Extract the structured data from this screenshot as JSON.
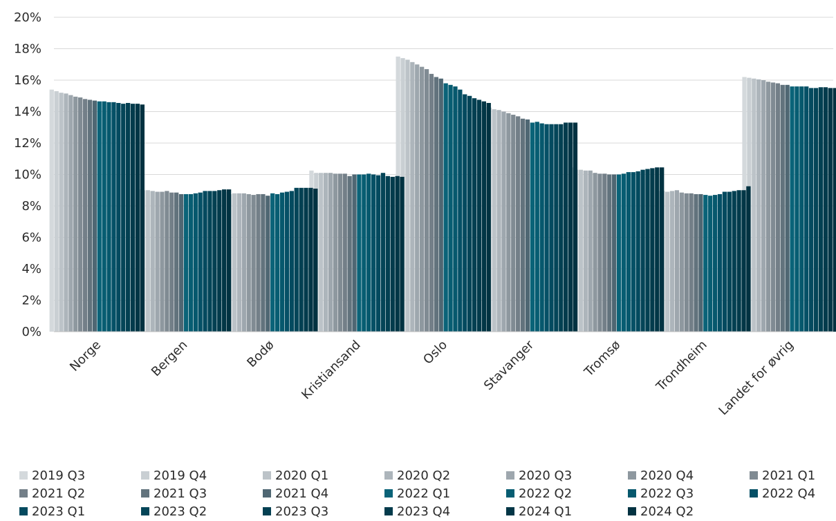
{
  "chart_data": {
    "type": "bar",
    "title": "",
    "xlabel": "",
    "ylabel": "",
    "ylim": [
      0,
      20
    ],
    "yticks": [
      "0%",
      "2%",
      "4%",
      "6%",
      "8%",
      "10%",
      "12%",
      "14%",
      "16%",
      "18%",
      "20%"
    ],
    "grid": true,
    "legend_position": "bottom",
    "categories": [
      "Norge",
      "Bergen",
      "Bodø",
      "Kristiansand",
      "Oslo",
      "Stavanger",
      "Tromsø",
      "Trondheim",
      "Landet for øvrig"
    ],
    "series": [
      {
        "name": "2019 Q3",
        "color": "#d4d9dc",
        "values": [
          15.4,
          9.05,
          8.9,
          10.25,
          17.5,
          14.3,
          10.45,
          8.95,
          16.2
        ]
      },
      {
        "name": "2019 Q4",
        "color": "#c9cfd3",
        "values": [
          15.3,
          9.0,
          8.75,
          10.1,
          17.4,
          14.25,
          10.3,
          8.95,
          16.15
        ]
      },
      {
        "name": "2020 Q1",
        "color": "#bcc3c8",
        "values": [
          15.2,
          9.0,
          8.8,
          10.1,
          17.3,
          14.15,
          10.3,
          8.9,
          16.1
        ]
      },
      {
        "name": "2020 Q2",
        "color": "#adb5bb",
        "values": [
          15.15,
          8.95,
          8.8,
          10.1,
          17.15,
          14.1,
          10.25,
          8.95,
          16.05
        ]
      },
      {
        "name": "2020 Q3",
        "color": "#9ea7ae",
        "values": [
          15.05,
          8.9,
          8.8,
          10.1,
          17.0,
          14.0,
          10.25,
          9.0,
          16.0
        ]
      },
      {
        "name": "2020 Q4",
        "color": "#8e989f",
        "values": [
          14.95,
          8.9,
          8.75,
          10.05,
          16.85,
          13.9,
          10.1,
          8.85,
          15.9
        ]
      },
      {
        "name": "2021 Q1",
        "color": "#808b93",
        "values": [
          14.9,
          8.95,
          8.7,
          10.05,
          16.7,
          13.8,
          10.05,
          8.8,
          15.85
        ]
      },
      {
        "name": "2021 Q2",
        "color": "#737f88",
        "values": [
          14.8,
          8.85,
          8.75,
          10.05,
          16.4,
          13.7,
          10.05,
          8.8,
          15.8
        ]
      },
      {
        "name": "2021 Q3",
        "color": "#62737d",
        "values": [
          14.75,
          8.85,
          8.75,
          9.9,
          16.2,
          13.55,
          10.0,
          8.75,
          15.7
        ]
      },
      {
        "name": "2021 Q4",
        "color": "#4f6773",
        "values": [
          14.7,
          8.75,
          8.65,
          10.0,
          16.1,
          13.5,
          10.0,
          8.75,
          15.7
        ]
      },
      {
        "name": "2022 Q1",
        "color": "#0a6378",
        "values": [
          14.65,
          8.75,
          8.8,
          10.0,
          15.8,
          13.3,
          10.0,
          8.7,
          15.6
        ]
      },
      {
        "name": "2022 Q2",
        "color": "#075d72",
        "values": [
          14.65,
          8.75,
          8.75,
          10.0,
          15.7,
          13.35,
          10.05,
          8.65,
          15.6
        ]
      },
      {
        "name": "2022 Q3",
        "color": "#06586d",
        "values": [
          14.6,
          8.8,
          8.85,
          10.05,
          15.6,
          13.25,
          10.15,
          8.7,
          15.6
        ]
      },
      {
        "name": "2022 Q4",
        "color": "#055066",
        "values": [
          14.6,
          8.85,
          8.9,
          10.0,
          15.4,
          13.2,
          10.15,
          8.75,
          15.6
        ]
      },
      {
        "name": "2023 Q1",
        "color": "#044a5f",
        "values": [
          14.55,
          8.95,
          8.95,
          9.95,
          15.1,
          13.2,
          10.2,
          8.9,
          15.5
        ]
      },
      {
        "name": "2023 Q2",
        "color": "#044558",
        "values": [
          14.5,
          8.95,
          9.15,
          10.1,
          15.0,
          13.2,
          10.3,
          8.9,
          15.5
        ]
      },
      {
        "name": "2023 Q3",
        "color": "#034052",
        "values": [
          14.55,
          8.95,
          9.15,
          9.9,
          14.85,
          13.2,
          10.35,
          8.95,
          15.55
        ]
      },
      {
        "name": "2023 Q4",
        "color": "#033b4c",
        "values": [
          14.5,
          9.0,
          9.15,
          9.85,
          14.75,
          13.3,
          10.4,
          9.0,
          15.55
        ]
      },
      {
        "name": "2024 Q1",
        "color": "#023646",
        "values": [
          14.5,
          9.05,
          9.15,
          9.9,
          14.65,
          13.3,
          10.45,
          9.0,
          15.5
        ]
      },
      {
        "name": "2024 Q2",
        "color": "#023241",
        "values": [
          14.45,
          9.05,
          9.1,
          9.85,
          14.55,
          13.3,
          10.45,
          9.25,
          15.5
        ]
      }
    ]
  }
}
